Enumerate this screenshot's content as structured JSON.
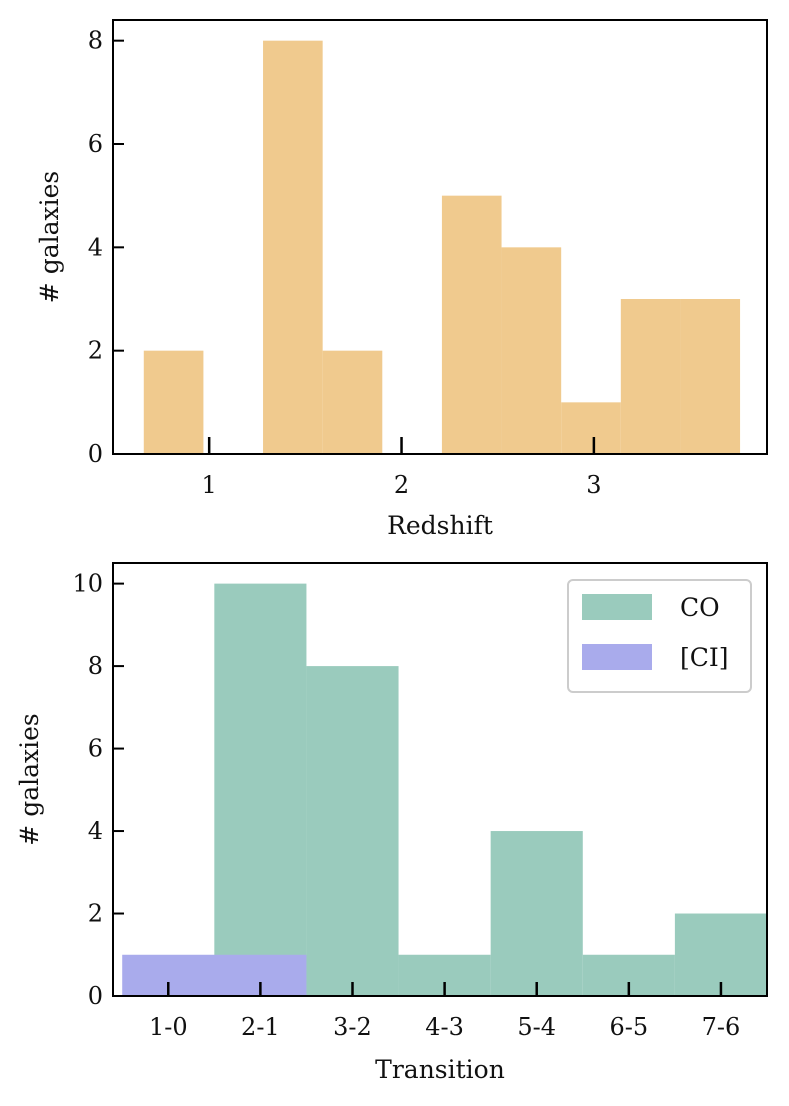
{
  "chart_data": [
    {
      "type": "bar",
      "xlabel": "Redshift",
      "ylabel": "# galaxies",
      "xlim": [
        0.5,
        3.9
      ],
      "ylim": [
        0,
        8.4
      ],
      "xticks": [
        "1",
        "2",
        "3"
      ],
      "xtick_values": [
        1,
        2,
        3
      ],
      "yticks": [
        "0",
        "2",
        "4",
        "6",
        "8"
      ],
      "ytick_values": [
        0,
        2,
        4,
        6,
        8
      ],
      "grid": false,
      "series": [
        {
          "color": "#f0ca8e",
          "bins": [
            {
              "x0": 0.66,
              "x1": 0.97,
              "value": 2
            },
            {
              "x0": 0.97,
              "x1": 1.28,
              "value": 0
            },
            {
              "x0": 1.28,
              "x1": 1.59,
              "value": 8
            },
            {
              "x0": 1.59,
              "x1": 1.9,
              "value": 2
            },
            {
              "x0": 1.9,
              "x1": 2.21,
              "value": 0
            },
            {
              "x0": 2.21,
              "x1": 2.52,
              "value": 5
            },
            {
              "x0": 2.52,
              "x1": 2.83,
              "value": 4
            },
            {
              "x0": 2.83,
              "x1": 3.14,
              "value": 1
            },
            {
              "x0": 3.14,
              "x1": 3.45,
              "value": 3
            },
            {
              "x0": 3.45,
              "x1": 3.76,
              "value": 3
            }
          ]
        }
      ]
    },
    {
      "type": "bar",
      "xlabel": "Transition",
      "ylabel": "# galaxies",
      "categories": [
        "1-0",
        "2-1",
        "3-2",
        "4-3",
        "5-4",
        "6-5",
        "7-6"
      ],
      "ylim": [
        0,
        10.5
      ],
      "yticks": [
        "0",
        "2",
        "4",
        "6",
        "8",
        "10"
      ],
      "ytick_values": [
        0,
        2,
        4,
        6,
        8,
        10
      ],
      "legend_position": "top-right",
      "grid": false,
      "series": [
        {
          "name": "CO",
          "color": "#9acbbd",
          "bins": [
            {
              "x0": 1.5,
              "x1": 2.5,
              "value": 10
            },
            {
              "x0": 2.5,
              "x1": 3.5,
              "value": 8
            },
            {
              "x0": 3.5,
              "x1": 4.5,
              "value": 1
            },
            {
              "x0": 4.5,
              "x1": 5.5,
              "value": 4
            },
            {
              "x0": 5.5,
              "x1": 6.5,
              "value": 1
            },
            {
              "x0": 6.5,
              "x1": 7.5,
              "value": 2
            }
          ]
        },
        {
          "name": "[CI]",
          "color": "#a9abec",
          "bins": [
            {
              "x0": 0.5,
              "x1": 2.5,
              "value": 1
            }
          ]
        }
      ]
    }
  ]
}
